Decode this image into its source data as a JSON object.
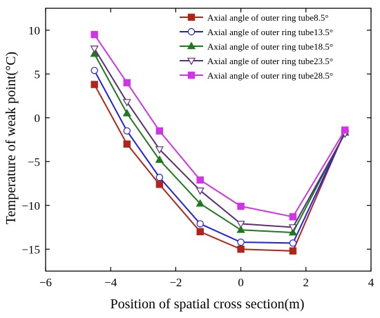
{
  "chart_data": {
    "type": "line",
    "xlabel": "Position of spatial cross section(m)",
    "ylabel": "Temperature of weak point(°C)",
    "xlim": [
      -6,
      4
    ],
    "ylim": [
      -17.5,
      12.5
    ],
    "xticks": [
      -6,
      -4,
      -2,
      0,
      2,
      4
    ],
    "xtick_labels": [
      "−6",
      "−4",
      "−2",
      "0",
      "2",
      "4"
    ],
    "yticks": [
      -15,
      -10,
      -5,
      0,
      5,
      10
    ],
    "ytick_labels": [
      "−15",
      "−10",
      "−5",
      "0",
      "5",
      "10"
    ],
    "grid": false,
    "legend_position": "top-right",
    "x": [
      -4.5,
      -3.5,
      -2.5,
      -1.25,
      0,
      1.6,
      3.2
    ],
    "series": [
      {
        "name": "Axial angle of outer ring tube8.5°",
        "color": "#b22418",
        "marker": "square-filled",
        "values": [
          3.8,
          -3.0,
          -7.6,
          -13.0,
          -15.0,
          -15.2,
          -1.5
        ]
      },
      {
        "name": "Axial angle of outer ring tube13.5°",
        "color": "#1f1fe8",
        "marker": "circle-open",
        "values": [
          5.4,
          -1.5,
          -6.8,
          -12.1,
          -14.2,
          -14.3,
          -1.6
        ]
      },
      {
        "name": "Axial angle of outer ring tube18.5°",
        "color": "#1b7a1b",
        "marker": "triangle-up-filled",
        "values": [
          7.3,
          0.5,
          -4.8,
          -9.8,
          -12.8,
          -13.1,
          -1.7
        ]
      },
      {
        "name": "Axial angle of outer ring tube23.5°",
        "color": "#5a2f7a",
        "marker": "triangle-down-open",
        "values": [
          7.9,
          1.8,
          -3.6,
          -8.3,
          -12.1,
          -12.5,
          -1.8
        ]
      },
      {
        "name": "Axial angle of outer ring tube28.5°",
        "color": "#d033e8",
        "marker": "square-filled",
        "values": [
          9.5,
          4.0,
          -1.5,
          -7.1,
          -10.1,
          -11.3,
          -1.4
        ]
      }
    ]
  }
}
